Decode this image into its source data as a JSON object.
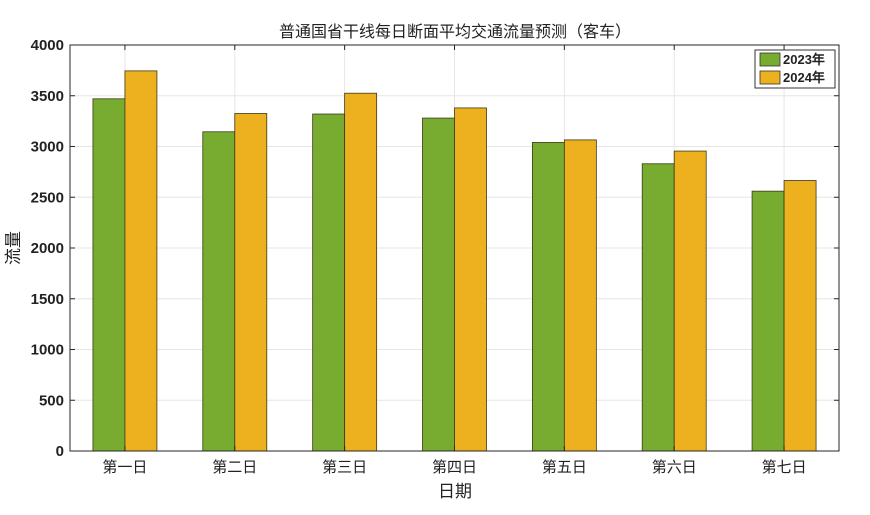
{
  "chart_data": {
    "type": "bar",
    "title": "普通国省干线每日断面平均交通流量预测（客车）",
    "xlabel": "日期",
    "ylabel": "流量",
    "categories": [
      "第一日",
      "第二日",
      "第三日",
      "第四日",
      "第五日",
      "第六日",
      "第七日"
    ],
    "series": [
      {
        "name": "2023年",
        "color": "#77ac30",
        "values": [
          3470,
          3145,
          3320,
          3280,
          3040,
          2830,
          2560
        ]
      },
      {
        "name": "2024年",
        "color": "#edb120",
        "values": [
          3745,
          3325,
          3525,
          3380,
          3065,
          2955,
          2665
        ]
      }
    ],
    "ylim": [
      0,
      4000
    ],
    "yticks": [
      0,
      500,
      1000,
      1500,
      2000,
      2500,
      3000,
      3500,
      4000
    ],
    "grid": true,
    "legend_position": "top-right"
  }
}
